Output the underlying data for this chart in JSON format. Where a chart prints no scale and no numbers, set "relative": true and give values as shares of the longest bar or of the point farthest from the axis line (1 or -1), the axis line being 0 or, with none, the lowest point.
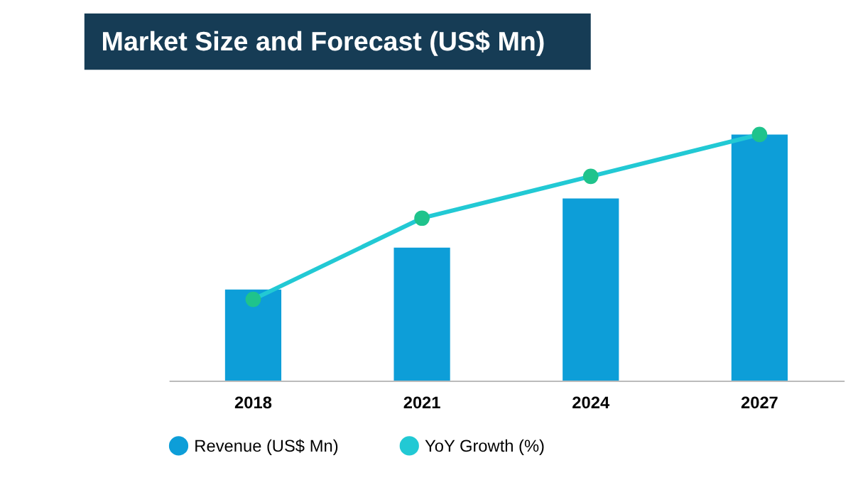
{
  "chart_data": {
    "type": "bar",
    "title": "Market Size and Forecast (US$ Mn)",
    "relative": true,
    "categories": [
      "2018",
      "2021",
      "2024",
      "2027"
    ],
    "series": [
      {
        "name": "Revenue (US$ Mn)",
        "color": "#0d9ed8",
        "values": [
          0.37,
          0.54,
          0.74,
          1
        ]
      },
      {
        "name": "YoY Growth (%)",
        "type": "line",
        "color": "#22c9d4",
        "marker": "circle",
        "values": [
          0.33,
          0.66,
          0.83,
          1
        ]
      }
    ],
    "legend": "bottom",
    "grid": false
  }
}
